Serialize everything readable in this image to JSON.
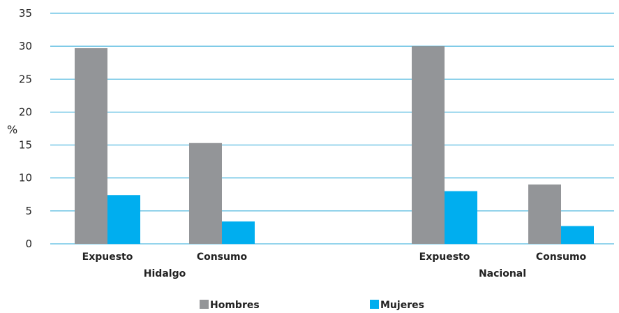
{
  "chart_data": {
    "type": "bar",
    "ylabel": "%",
    "ylim": [
      0,
      35
    ],
    "yticks": [
      0,
      5,
      10,
      15,
      20,
      25,
      30,
      35
    ],
    "grid": true,
    "groups": [
      {
        "label": "Hidalgo",
        "categories": [
          "Expuesto",
          "Consumo"
        ]
      },
      {
        "label": "Nacional",
        "categories": [
          "Expuesto",
          "Consumo"
        ]
      }
    ],
    "categories": [
      "Expuesto",
      "Consumo",
      "Expuesto",
      "Consumo"
    ],
    "series": [
      {
        "name": "Hombres",
        "color": "#939598",
        "values": [
          29.7,
          15.3,
          30.0,
          9.0
        ]
      },
      {
        "name": "Mujeres",
        "color": "#00aeef",
        "values": [
          7.4,
          3.4,
          8.0,
          2.7
        ]
      }
    ],
    "legend_position": "bottom",
    "gridline_color": "#29a8d8"
  }
}
